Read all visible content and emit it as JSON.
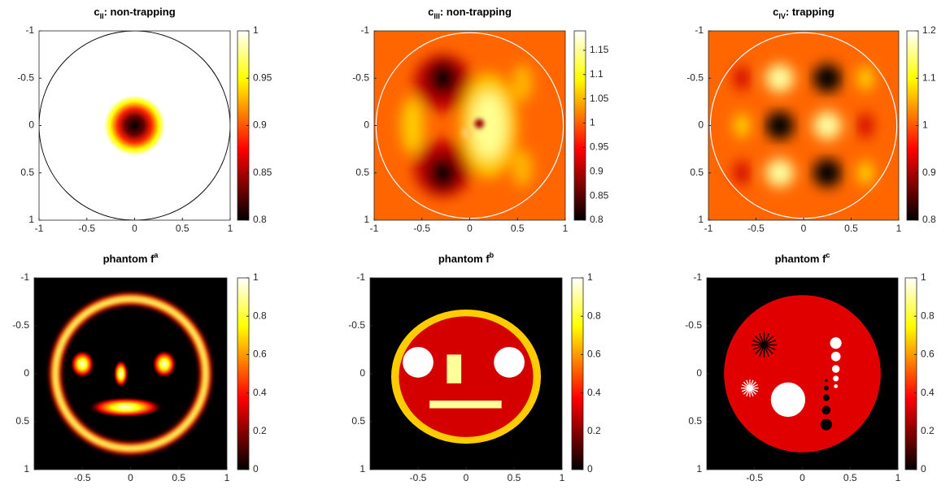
{
  "chart_data": [
    {
      "type": "heatmap",
      "title": "c",
      "title_subscript": "II",
      "title_rest": ": non-trapping",
      "colormap": "hot",
      "xlim": [
        -1,
        1
      ],
      "ylim": [
        1,
        -1
      ],
      "xticks": [
        -1,
        -0.5,
        0,
        0.5,
        1
      ],
      "yticks": [
        -1,
        -0.5,
        0,
        0.5,
        1
      ],
      "clim": [
        0.8,
        1
      ],
      "cticks": [
        0.8,
        0.85,
        0.9,
        0.95,
        1
      ]
    },
    {
      "type": "heatmap",
      "title": "c",
      "title_subscript": "III",
      "title_rest": ": non-trapping",
      "colormap": "hot",
      "xlim": [
        -1,
        1
      ],
      "ylim": [
        1,
        -1
      ],
      "xticks": [
        -1,
        -0.5,
        0,
        0.5,
        1
      ],
      "yticks": [
        -1,
        -0.5,
        0,
        0.5,
        1
      ],
      "clim": [
        0.8,
        1.19
      ],
      "cticks": [
        0.8,
        0.85,
        0.9,
        0.95,
        1,
        1.05,
        1.1,
        1.15
      ]
    },
    {
      "type": "heatmap",
      "title": "c",
      "title_subscript": "IV",
      "title_rest": ": trapping",
      "colormap": "hot",
      "xlim": [
        -1,
        1
      ],
      "ylim": [
        1,
        -1
      ],
      "xticks": [
        -1,
        -0.5,
        0,
        0.5,
        1
      ],
      "yticks": [
        -1,
        -0.5,
        0,
        0.5,
        1
      ],
      "clim": [
        0.8,
        1.2
      ],
      "cticks": [
        0.8,
        0.9,
        1,
        1.1,
        1.2
      ]
    },
    {
      "type": "heatmap",
      "title": "phantom f",
      "title_superscript": "a",
      "colormap": "hot",
      "xlim": [
        -1,
        1
      ],
      "ylim": [
        1,
        -1
      ],
      "xticks": [
        -0.5,
        0,
        0.5,
        1
      ],
      "yticks": [
        -1,
        -0.5,
        0,
        0.5,
        1
      ],
      "clim": [
        0,
        1
      ],
      "cticks": [
        0,
        0.2,
        0.4,
        0.6,
        0.8,
        1
      ]
    },
    {
      "type": "heatmap",
      "title": "phantom f",
      "title_superscript": "b",
      "colormap": "hot",
      "xlim": [
        -1,
        1
      ],
      "ylim": [
        1,
        -1
      ],
      "xticks": [
        -0.5,
        0,
        0.5,
        1
      ],
      "yticks": [
        -1,
        -0.5,
        0,
        0.5,
        1
      ],
      "clim": [
        0,
        1
      ],
      "cticks": [
        0,
        0.2,
        0.4,
        0.6,
        0.8,
        1
      ]
    },
    {
      "type": "heatmap",
      "title": "phantom f",
      "title_superscript": "c",
      "colormap": "hot",
      "xlim": [
        -1,
        1
      ],
      "ylim": [
        1,
        -1
      ],
      "xticks": [
        -0.5,
        0,
        0.5,
        1
      ],
      "yticks": [
        -1,
        -0.5,
        0,
        0.5,
        1
      ],
      "clim": [
        0,
        1
      ],
      "cticks": [
        0,
        0.2,
        0.4,
        0.6,
        0.8,
        1
      ]
    }
  ]
}
